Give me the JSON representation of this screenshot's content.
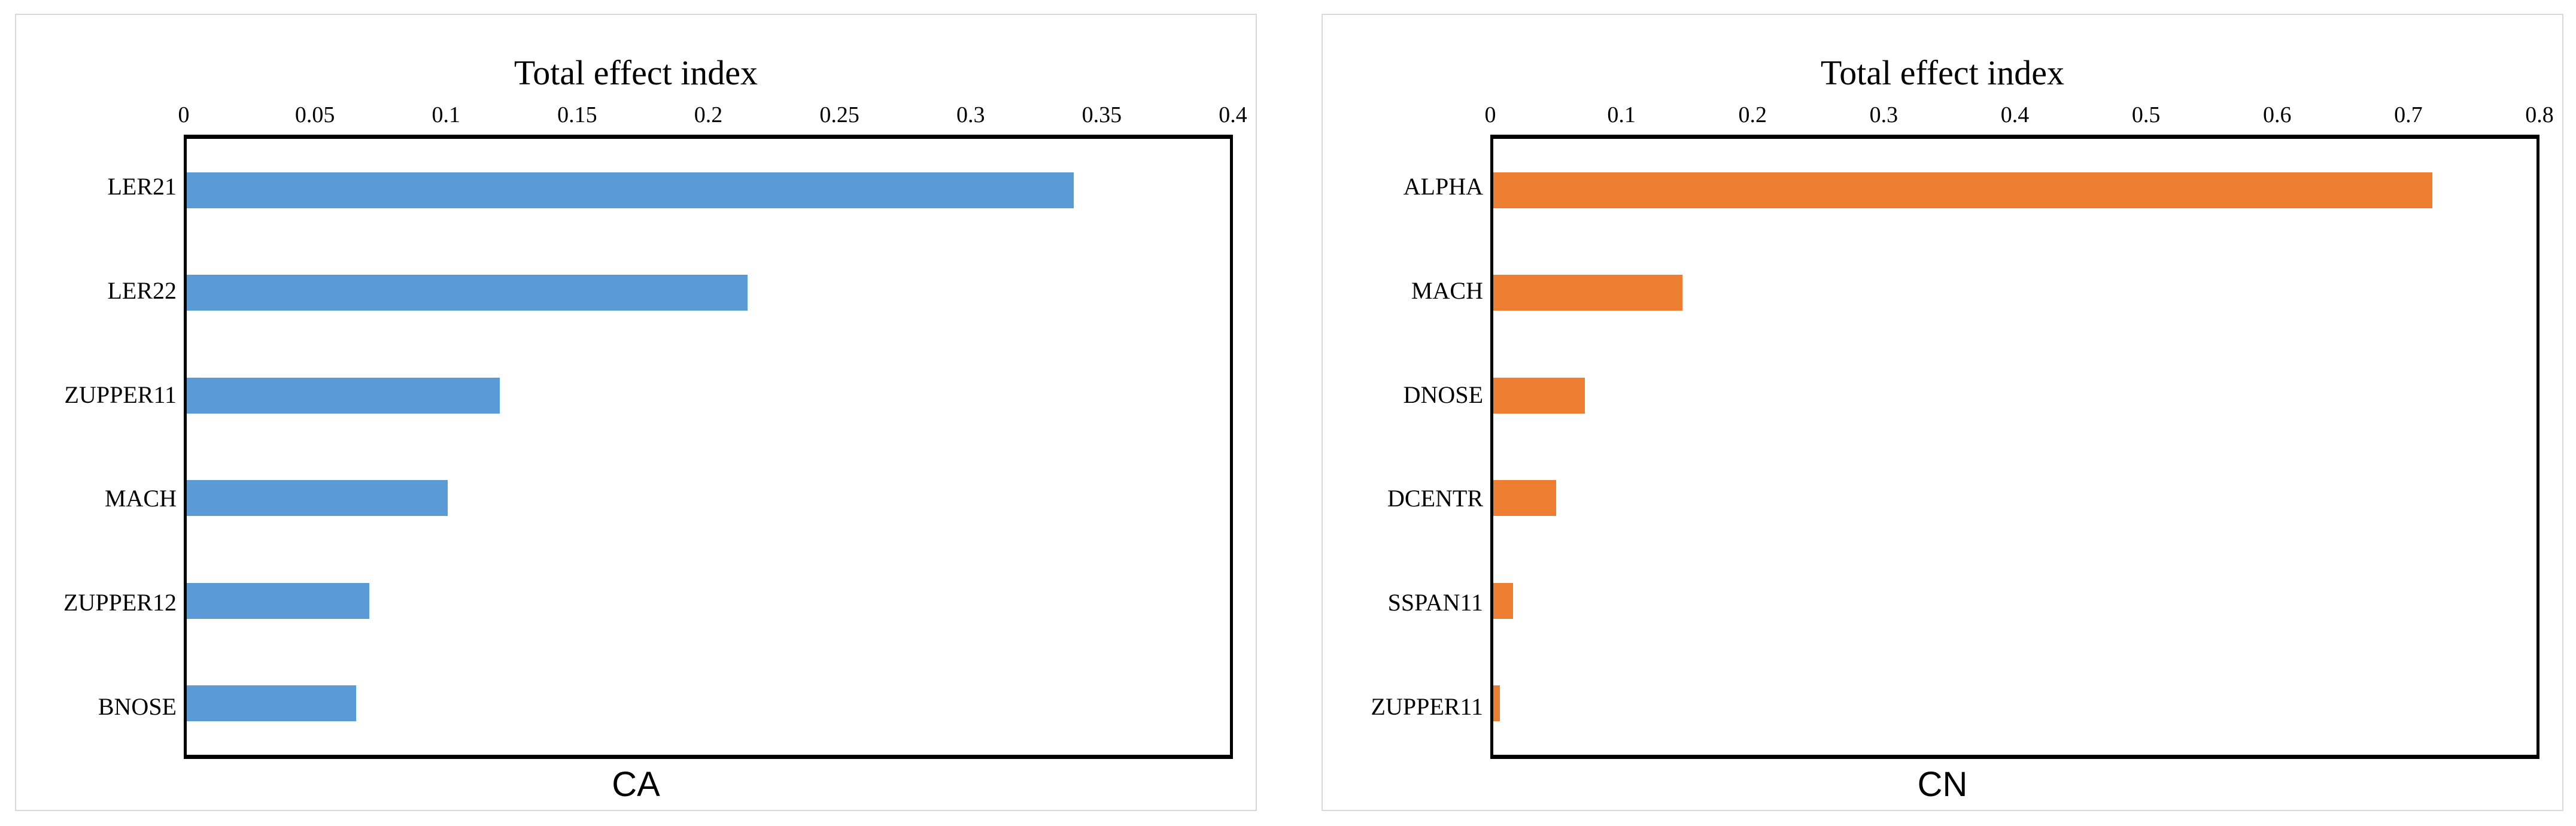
{
  "chart_data": [
    {
      "type": "bar",
      "orientation": "horizontal",
      "title": "Total effect index",
      "xlabel": "CA",
      "categories": [
        "LER21",
        "LER22",
        "ZUPPER11",
        "MACH",
        "ZUPPER12",
        "BNOSE"
      ],
      "values": [
        0.34,
        0.215,
        0.12,
        0.1,
        0.07,
        0.065
      ],
      "axis": {
        "min": 0,
        "max": 0.4,
        "ticks": [
          "0",
          "0.05",
          "0.1",
          "0.15",
          "0.2",
          "0.25",
          "0.3",
          "0.35",
          "0.4"
        ]
      },
      "bar_color": "#5B9BD5",
      "grid": false,
      "legend": "none"
    },
    {
      "type": "bar",
      "orientation": "horizontal",
      "title": "Total effect index",
      "xlabel": "CN",
      "categories": [
        "ALPHA",
        "MACH",
        "DNOSE",
        "DCENTR",
        "SSPAN11",
        "ZUPPER11"
      ],
      "values": [
        0.72,
        0.145,
        0.07,
        0.048,
        0.015,
        0.005
      ],
      "axis": {
        "min": 0,
        "max": 0.8,
        "ticks": [
          "0",
          "0.1",
          "0.2",
          "0.3",
          "0.4",
          "0.5",
          "0.6",
          "0.7",
          "0.8"
        ]
      },
      "bar_color": "#ED7D31",
      "grid": false,
      "legend": "none"
    }
  ],
  "colors": {
    "panel_border": "#d9d9d9",
    "plot_frame": "#000000",
    "background": "#ffffff",
    "text": "#000000"
  }
}
